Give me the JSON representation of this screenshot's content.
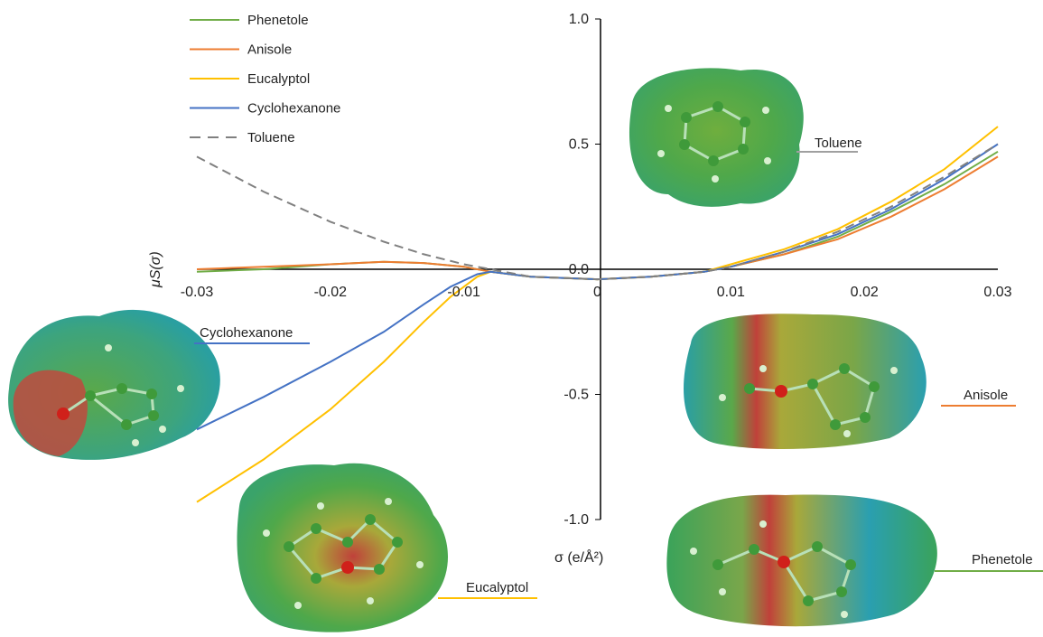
{
  "chart_data": {
    "type": "line",
    "xlabel": "σ (e/Å²)",
    "ylabel": "μS(σ)",
    "xlim": [
      -0.03,
      0.03
    ],
    "ylim": [
      -1.0,
      1.0
    ],
    "x_ticks": [
      "-0.03",
      "-0.02",
      "-0.01",
      "0",
      "0.01",
      "0.02",
      "0.03"
    ],
    "y_ticks": [
      "1.0",
      "0.5",
      "0.0",
      "-0.5",
      "-1.0"
    ],
    "grid": false,
    "legend_position": "top-left",
    "series": [
      {
        "name": "Phenetole",
        "color": "#70ad47",
        "dash": false,
        "points": [
          [
            -0.03,
            -0.01
          ],
          [
            -0.025,
            0.0
          ],
          [
            -0.02,
            0.02
          ],
          [
            -0.016,
            0.03
          ],
          [
            -0.013,
            0.025
          ],
          [
            -0.01,
            0.01
          ],
          [
            -0.008,
            -0.01
          ],
          [
            -0.005,
            -0.03
          ],
          [
            0.0,
            -0.04
          ],
          [
            0.004,
            -0.03
          ],
          [
            0.008,
            -0.01
          ],
          [
            0.01,
            0.01
          ],
          [
            0.014,
            0.06
          ],
          [
            0.018,
            0.13
          ],
          [
            0.022,
            0.23
          ],
          [
            0.026,
            0.34
          ],
          [
            0.03,
            0.47
          ]
        ]
      },
      {
        "name": "Anisole",
        "color": "#ed7d31",
        "dash": false,
        "points": [
          [
            -0.03,
            0.0
          ],
          [
            -0.025,
            0.01
          ],
          [
            -0.02,
            0.02
          ],
          [
            -0.016,
            0.03
          ],
          [
            -0.013,
            0.025
          ],
          [
            -0.01,
            0.01
          ],
          [
            -0.008,
            -0.01
          ],
          [
            -0.005,
            -0.03
          ],
          [
            0.0,
            -0.04
          ],
          [
            0.004,
            -0.03
          ],
          [
            0.008,
            -0.01
          ],
          [
            0.01,
            0.01
          ],
          [
            0.014,
            0.06
          ],
          [
            0.018,
            0.12
          ],
          [
            0.022,
            0.21
          ],
          [
            0.026,
            0.32
          ],
          [
            0.03,
            0.45
          ]
        ]
      },
      {
        "name": "Eucalyptol",
        "color": "#ffc000",
        "dash": false,
        "points": [
          [
            -0.03,
            -0.93
          ],
          [
            -0.025,
            -0.76
          ],
          [
            -0.02,
            -0.56
          ],
          [
            -0.016,
            -0.37
          ],
          [
            -0.013,
            -0.21
          ],
          [
            -0.011,
            -0.11
          ],
          [
            -0.009,
            -0.03
          ],
          [
            -0.008,
            -0.01
          ],
          [
            -0.005,
            -0.03
          ],
          [
            0.0,
            -0.04
          ],
          [
            0.004,
            -0.03
          ],
          [
            0.008,
            -0.01
          ],
          [
            0.01,
            0.02
          ],
          [
            0.014,
            0.08
          ],
          [
            0.018,
            0.16
          ],
          [
            0.022,
            0.27
          ],
          [
            0.026,
            0.4
          ],
          [
            0.03,
            0.57
          ]
        ]
      },
      {
        "name": "Cyclohexanone",
        "color": "#4472c4",
        "dash": false,
        "points": [
          [
            -0.03,
            -0.64
          ],
          [
            -0.025,
            -0.51
          ],
          [
            -0.02,
            -0.37
          ],
          [
            -0.016,
            -0.25
          ],
          [
            -0.013,
            -0.14
          ],
          [
            -0.011,
            -0.07
          ],
          [
            -0.009,
            -0.02
          ],
          [
            -0.008,
            -0.01
          ],
          [
            -0.005,
            -0.03
          ],
          [
            0.0,
            -0.04
          ],
          [
            0.004,
            -0.03
          ],
          [
            0.008,
            -0.01
          ],
          [
            0.01,
            0.01
          ],
          [
            0.014,
            0.07
          ],
          [
            0.018,
            0.14
          ],
          [
            0.022,
            0.24
          ],
          [
            0.026,
            0.36
          ],
          [
            0.03,
            0.5
          ]
        ]
      },
      {
        "name": "Toluene",
        "color": "#808080",
        "dash": true,
        "points": [
          [
            -0.03,
            0.45
          ],
          [
            -0.025,
            0.31
          ],
          [
            -0.02,
            0.19
          ],
          [
            -0.016,
            0.11
          ],
          [
            -0.013,
            0.06
          ],
          [
            -0.01,
            0.02
          ],
          [
            -0.008,
            0.0
          ],
          [
            -0.005,
            -0.03
          ],
          [
            0.0,
            -0.04
          ],
          [
            0.004,
            -0.03
          ],
          [
            0.008,
            -0.01
          ],
          [
            0.01,
            0.01
          ],
          [
            0.014,
            0.07
          ],
          [
            0.018,
            0.15
          ],
          [
            0.022,
            0.25
          ],
          [
            0.026,
            0.37
          ],
          [
            0.03,
            0.5
          ]
        ]
      }
    ],
    "molecule_labels": [
      {
        "name": "Toluene",
        "color": "#a0a0a0"
      },
      {
        "name": "Cyclohexanone",
        "color": "#4472c4"
      },
      {
        "name": "Anisole",
        "color": "#ed7d31"
      },
      {
        "name": "Eucalyptol",
        "color": "#ffc000"
      },
      {
        "name": "Phenetole",
        "color": "#70ad47"
      }
    ]
  }
}
